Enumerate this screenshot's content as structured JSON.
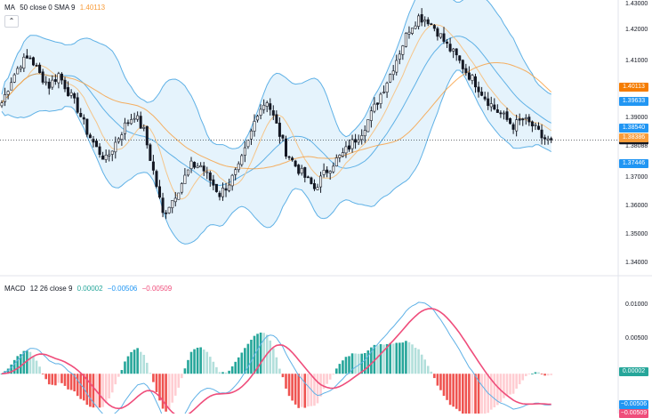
{
  "legend_main": {
    "name": "MA",
    "params": "50 close 0 SMA 9",
    "value": "1.40113"
  },
  "legend_macd": {
    "name": "MACD",
    "params": "12 26 close 9",
    "v1": "0.00002",
    "v2": "−0.00506",
    "v3": "−0.00509"
  },
  "colors": {
    "ma": "#f89c3a",
    "bb": "#5fb1e6",
    "bb_fill": "#dff0fb",
    "up": "#131722",
    "down": "#131722",
    "macd": "#5fb1e6",
    "signal": "#ef4d7b",
    "hist_up_strong": "#26a69a",
    "hist_up_weak": "#b2dfdb",
    "hist_dn_strong": "#ef5350",
    "hist_dn_weak": "#ffcdd2",
    "last_price": "#131722"
  },
  "price_axis": [
    "1.43000",
    "1.42000",
    "1.41000",
    "1.40113",
    "1.39633",
    "1.39000",
    "1.38540",
    "1.38386",
    "1.38088",
    "1.37446",
    "1.37000",
    "1.36000",
    "1.35000",
    "1.34000"
  ],
  "macd_axis": [
    "0.01000",
    "0.00500",
    "0.00002",
    "−0.00506",
    "−0.00509"
  ],
  "tags": [
    {
      "label": "1.40113",
      "value": 1.40113,
      "color": "#f57c00"
    },
    {
      "label": "1.39633",
      "value": 1.39633,
      "color": "#2196f3"
    },
    {
      "label": "1.38540",
      "value": 1.3854,
      "color": "#2196f3"
    },
    {
      "label": "1.38386",
      "value": 1.38386,
      "color": "#f89c3a"
    },
    {
      "label": "1.37446",
      "value": 1.37446,
      "color": "#2196f3"
    }
  ],
  "chart_data": {
    "type": "candlestick",
    "price_range": [
      1.335,
      1.43
    ],
    "macd_range": [
      -0.0062,
      0.0125
    ],
    "anchors": [
      [
        0,
        1.394
      ],
      [
        3,
        1.402
      ],
      [
        6,
        1.408
      ],
      [
        9,
        1.41
      ],
      [
        12,
        1.404
      ],
      [
        15,
        1.4
      ],
      [
        18,
        1.404
      ],
      [
        21,
        1.398
      ],
      [
        24,
        1.392
      ],
      [
        27,
        1.384
      ],
      [
        30,
        1.378
      ],
      [
        33,
        1.374
      ],
      [
        36,
        1.38
      ],
      [
        39,
        1.386
      ],
      [
        42,
        1.39
      ],
      [
        45,
        1.384
      ],
      [
        48,
        1.37
      ],
      [
        51,
        1.355
      ],
      [
        54,
        1.36
      ],
      [
        57,
        1.366
      ],
      [
        60,
        1.372
      ],
      [
        63,
        1.372
      ],
      [
        66,
        1.367
      ],
      [
        69,
        1.362
      ],
      [
        72,
        1.366
      ],
      [
        75,
        1.371
      ],
      [
        78,
        1.38
      ],
      [
        81,
        1.391
      ],
      [
        84,
        1.395
      ],
      [
        87,
        1.386
      ],
      [
        90,
        1.377
      ],
      [
        93,
        1.372
      ],
      [
        96,
        1.368
      ],
      [
        99,
        1.364
      ],
      [
        102,
        1.369
      ],
      [
        105,
        1.373
      ],
      [
        108,
        1.376
      ],
      [
        111,
        1.38
      ],
      [
        114,
        1.384
      ],
      [
        117,
        1.39
      ],
      [
        120,
        1.397
      ],
      [
        123,
        1.404
      ],
      [
        126,
        1.412
      ],
      [
        129,
        1.42
      ],
      [
        132,
        1.424
      ],
      [
        135,
        1.423
      ],
      [
        138,
        1.419
      ],
      [
        141,
        1.414
      ],
      [
        144,
        1.41
      ],
      [
        147,
        1.405
      ],
      [
        150,
        1.401
      ],
      [
        153,
        1.396
      ],
      [
        156,
        1.392
      ],
      [
        159,
        1.389
      ],
      [
        162,
        1.386
      ],
      [
        165,
        1.388
      ],
      [
        168,
        1.386
      ],
      [
        171,
        1.382
      ],
      [
        174,
        1.38
      ]
    ]
  }
}
